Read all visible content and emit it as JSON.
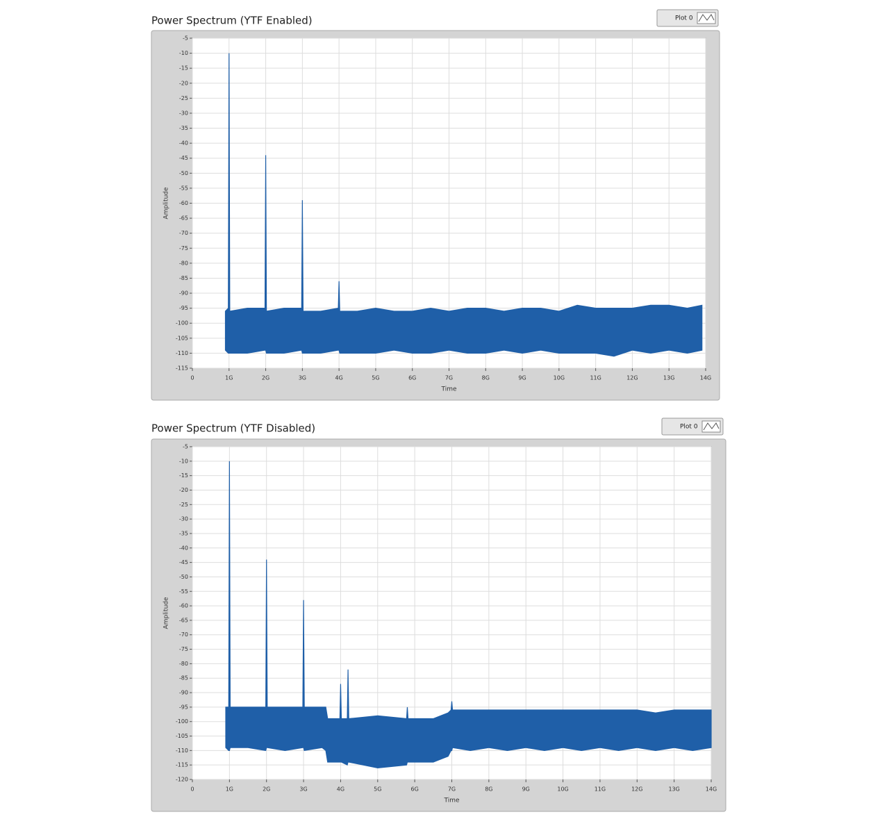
{
  "chart_data": [
    {
      "type": "spectrum",
      "title": "Power Spectrum (YTF Enabled)",
      "legend": "Plot 0",
      "xlabel": "Time",
      "ylabel": "Amplitude",
      "grid": true,
      "xlim": [
        0,
        14
      ],
      "xticks": [
        0,
        {
          "value": 1,
          "label": "1G"
        },
        {
          "value": 2,
          "label": "2G"
        },
        {
          "value": 3,
          "label": "3G"
        },
        {
          "value": 4,
          "label": "4G"
        },
        {
          "value": 5,
          "label": "5G"
        },
        {
          "value": 6,
          "label": "6G"
        },
        {
          "value": 7,
          "label": "7G"
        },
        {
          "value": 8,
          "label": "8G"
        },
        {
          "value": 9,
          "label": "9G"
        },
        {
          "value": 10,
          "label": "10G"
        },
        {
          "value": 11,
          "label": "11G"
        },
        {
          "value": 12,
          "label": "12G"
        },
        {
          "value": 13,
          "label": "13G"
        },
        {
          "value": 14,
          "label": "14G"
        }
      ],
      "ylim": [
        -115,
        -5
      ],
      "yticks": [
        -5,
        -10,
        -15,
        -20,
        -25,
        -30,
        -35,
        -40,
        -45,
        -50,
        -55,
        -60,
        -65,
        -70,
        -75,
        -80,
        -85,
        -90,
        -95,
        -100,
        -105,
        -110,
        -115
      ],
      "series": [
        {
          "name": "Plot 0",
          "color": "#1f5fa8",
          "x": [
            0.9,
            0.98,
            1,
            1.02,
            1.5,
            1.98,
            2,
            2.02,
            2.5,
            2.98,
            3,
            3.02,
            3.5,
            3.98,
            4,
            4.02,
            4.5,
            5,
            5.5,
            6,
            6.5,
            7,
            7.5,
            8,
            8.5,
            9,
            9.5,
            10,
            10.5,
            11,
            11.5,
            12,
            12.5,
            13,
            13.5,
            13.9
          ],
          "values": [
            -96,
            -95,
            -10,
            -96,
            -95,
            -95,
            -44,
            -96,
            -95,
            -95,
            -59,
            -96,
            -96,
            -95,
            -86,
            -96,
            -96,
            -95,
            -96,
            -96,
            -95,
            -96,
            -95,
            -95,
            -96,
            -95,
            -95,
            -96,
            -94,
            -95,
            -95,
            -95,
            -94,
            -94,
            -95,
            -94
          ],
          "low": [
            -109,
            -110,
            -110,
            -110,
            -110,
            -109,
            -109,
            -110,
            -110,
            -109,
            -110,
            -110,
            -110,
            -109,
            -109,
            -110,
            -110,
            -110,
            -109,
            -110,
            -110,
            -109,
            -110,
            -110,
            -109,
            -110,
            -109,
            -110,
            -110,
            -110,
            -111,
            -109,
            -110,
            -109,
            -110,
            -109
          ]
        }
      ]
    },
    {
      "type": "spectrum",
      "title": "Power Spectrum (YTF Disabled)",
      "legend": "Plot 0",
      "xlabel": "Time",
      "ylabel": "Amplitude",
      "grid": true,
      "xlim": [
        0,
        14
      ],
      "xticks": [
        0,
        {
          "value": 1,
          "label": "1G"
        },
        {
          "value": 2,
          "label": "2G"
        },
        {
          "value": 3,
          "label": "3G"
        },
        {
          "value": 4,
          "label": "4G"
        },
        {
          "value": 5,
          "label": "5G"
        },
        {
          "value": 6,
          "label": "6G"
        },
        {
          "value": 7,
          "label": "7G"
        },
        {
          "value": 8,
          "label": "8G"
        },
        {
          "value": 9,
          "label": "9G"
        },
        {
          "value": 10,
          "label": "10G"
        },
        {
          "value": 11,
          "label": "11G"
        },
        {
          "value": 12,
          "label": "12G"
        },
        {
          "value": 13,
          "label": "13G"
        },
        {
          "value": 14,
          "label": "14G"
        }
      ],
      "ylim": [
        -120,
        -5
      ],
      "yticks": [
        -5,
        -10,
        -15,
        -20,
        -25,
        -30,
        -35,
        -40,
        -45,
        -50,
        -55,
        -60,
        -65,
        -70,
        -75,
        -80,
        -85,
        -90,
        -95,
        -100,
        -105,
        -110,
        -115,
        -120
      ],
      "series": [
        {
          "name": "Plot 0",
          "color": "#1f5fa8",
          "x": [
            0.9,
            0.98,
            1,
            1.02,
            1.5,
            1.98,
            2,
            2.02,
            2.5,
            2.98,
            3,
            3.02,
            3.5,
            3.6,
            3.65,
            3.98,
            4,
            4.02,
            4.18,
            4.2,
            4.22,
            5,
            5.78,
            5.8,
            5.82,
            6.5,
            6.9,
            6.98,
            7,
            7.02,
            7.5,
            8,
            8.5,
            9,
            9.5,
            10,
            10.5,
            11,
            11.5,
            12,
            12.5,
            13,
            13.5,
            14
          ],
          "values": [
            -95,
            -95,
            -10,
            -95,
            -95,
            -95,
            -44,
            -95,
            -95,
            -95,
            -58,
            -95,
            -95,
            -95,
            -99,
            -99,
            -87,
            -99,
            -99,
            -82,
            -99,
            -98,
            -99,
            -95,
            -99,
            -99,
            -97,
            -96,
            -93,
            -96,
            -96,
            -96,
            -96,
            -96,
            -96,
            -96,
            -96,
            -96,
            -96,
            -96,
            -97,
            -96,
            -96,
            -96
          ],
          "low": [
            -109,
            -110,
            -110,
            -109,
            -109,
            -110,
            -109,
            -109,
            -110,
            -109,
            -109,
            -110,
            -109,
            -110,
            -114,
            -114,
            -114,
            -114,
            -115,
            -114,
            -114,
            -116,
            -115,
            -114,
            -114,
            -114,
            -112,
            -110,
            -110,
            -109,
            -110,
            -109,
            -110,
            -109,
            -110,
            -109,
            -110,
            -109,
            -110,
            -109,
            -110,
            -109,
            -110,
            -109
          ]
        }
      ]
    }
  ]
}
